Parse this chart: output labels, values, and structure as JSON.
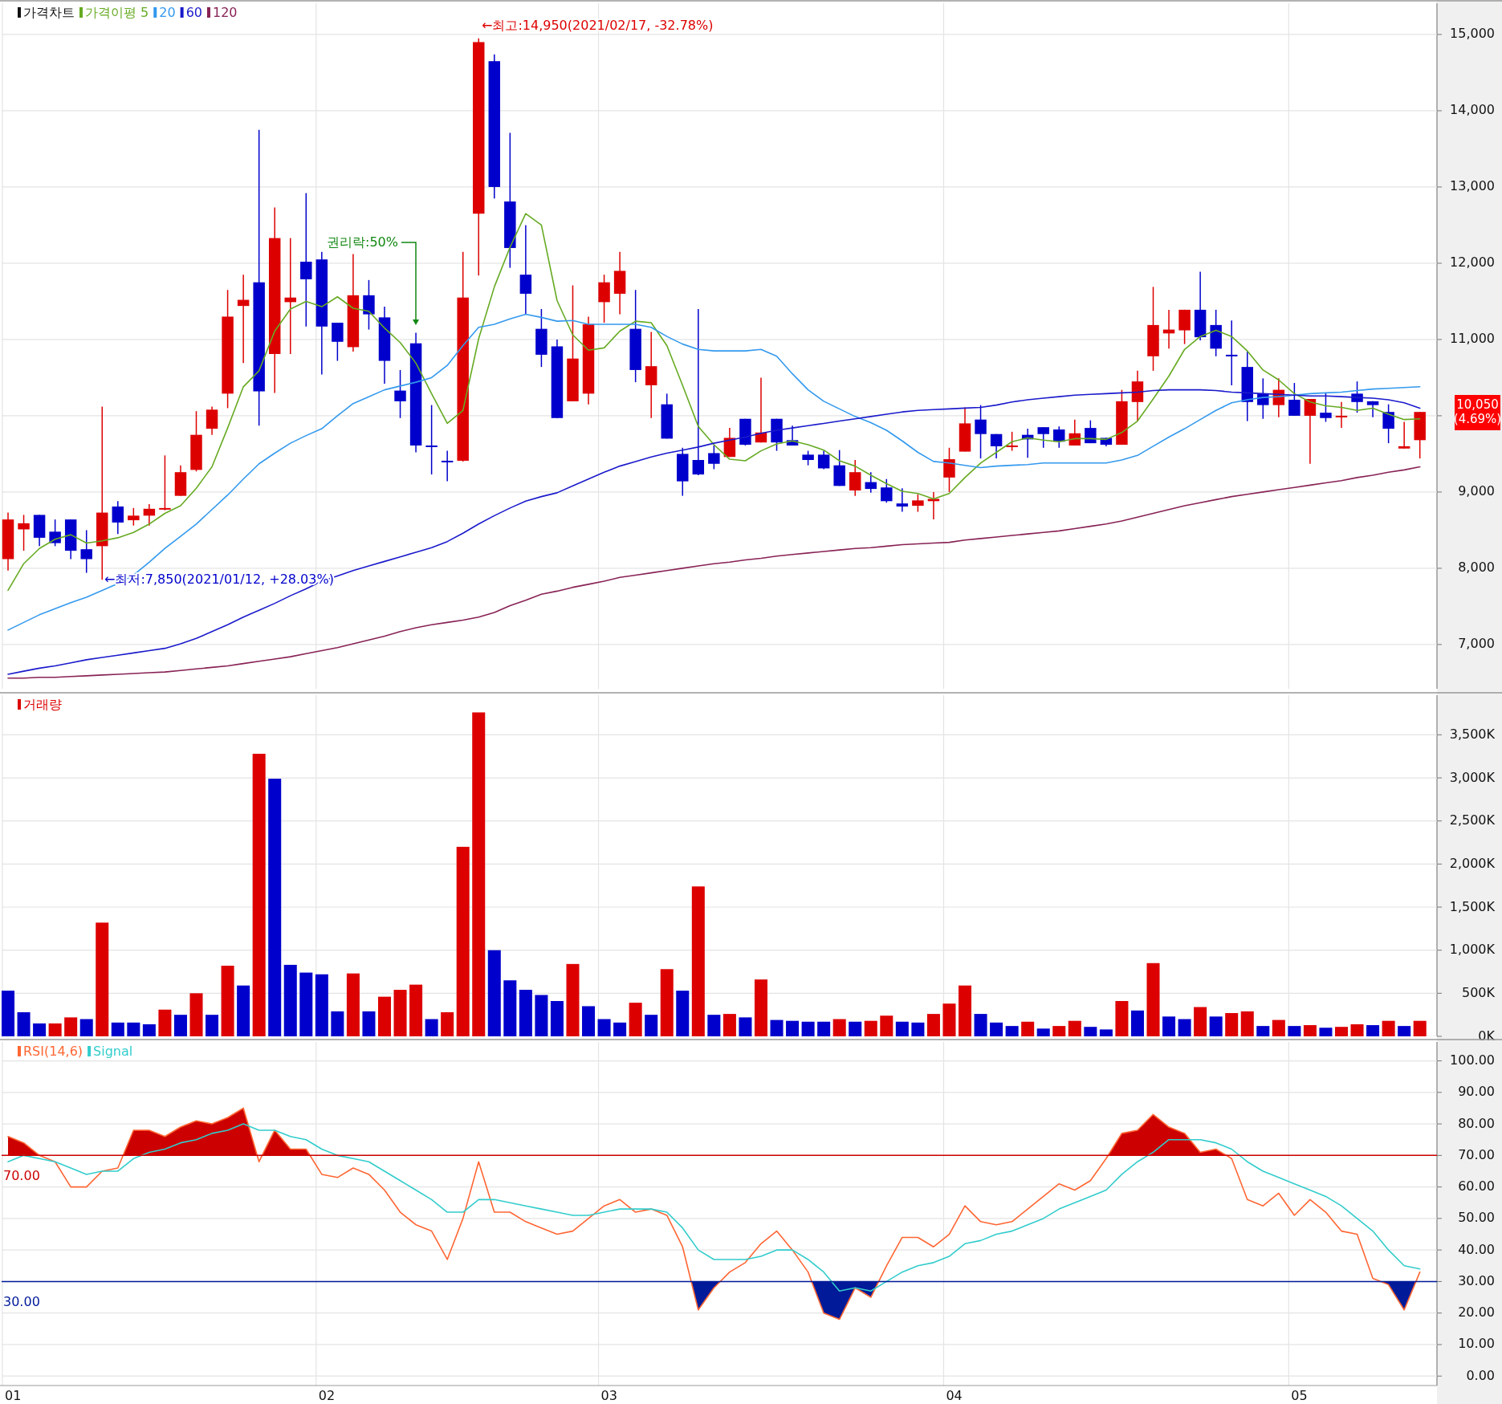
{
  "chart_data": [
    {
      "type": "candlestick",
      "title": "가격차트",
      "categories": [
        "01",
        null,
        null,
        null,
        null,
        null,
        null,
        null,
        null,
        null,
        null,
        null,
        null,
        null,
        null,
        null,
        null,
        null,
        null,
        null,
        "02",
        null,
        null,
        null,
        null,
        null,
        null,
        null,
        null,
        null,
        null,
        null,
        null,
        null,
        null,
        null,
        null,
        null,
        "03",
        null,
        null,
        null,
        null,
        null,
        null,
        null,
        null,
        null,
        null,
        null,
        null,
        null,
        null,
        null,
        null,
        null,
        null,
        null,
        null,
        null,
        "04",
        null,
        null,
        null,
        null,
        null,
        null,
        null,
        null,
        null,
        null,
        null,
        null,
        null,
        null,
        null,
        null,
        null,
        null,
        null,
        null,
        null,
        "05",
        null,
        null,
        null,
        null,
        null,
        null,
        null,
        null
      ],
      "ohlc": [
        [
          8120,
          8730,
          7970,
          8640
        ],
        [
          8510,
          8700,
          8230,
          8590
        ],
        [
          8700,
          8700,
          8290,
          8400
        ],
        [
          8480,
          8640,
          8290,
          8330
        ],
        [
          8640,
          8640,
          8120,
          8230
        ],
        [
          8250,
          8500,
          7940,
          8120
        ],
        [
          8290,
          10120,
          7850,
          8730
        ],
        [
          8810,
          8880,
          8450,
          8600
        ],
        [
          8630,
          8790,
          8560,
          8690
        ],
        [
          8690,
          8840,
          8560,
          8780
        ],
        [
          8770,
          9480,
          8760,
          8790
        ],
        [
          8950,
          9350,
          8950,
          9260
        ],
        [
          9290,
          10060,
          9270,
          9750
        ],
        [
          9830,
          10120,
          9750,
          10080
        ],
        [
          10290,
          11650,
          10100,
          11300
        ],
        [
          11440,
          11850,
          10690,
          11520
        ],
        [
          11750,
          13750,
          9870,
          10320
        ],
        [
          10810,
          12730,
          10300,
          12330
        ],
        [
          11490,
          12330,
          10810,
          11550
        ],
        [
          12020,
          12920,
          11170,
          11790
        ],
        [
          12050,
          12150,
          10540,
          11170
        ],
        [
          11220,
          11220,
          10720,
          10970
        ],
        [
          10900,
          12120,
          10840,
          11580
        ],
        [
          11580,
          11780,
          11130,
          11330
        ],
        [
          11290,
          11430,
          10420,
          10720
        ],
        [
          10330,
          10600,
          9970,
          10190
        ],
        [
          10950,
          11090,
          9520,
          9610
        ],
        [
          9610,
          10140,
          9230,
          9600
        ],
        [
          9410,
          9540,
          9140,
          9400
        ],
        [
          9410,
          12150,
          9400,
          11550
        ],
        [
          12650,
          14950,
          11840,
          14900
        ],
        [
          14650,
          14740,
          12850,
          13000
        ],
        [
          12810,
          13710,
          11940,
          12200
        ],
        [
          11850,
          12500,
          11330,
          11600
        ],
        [
          11140,
          11400,
          10640,
          10800
        ],
        [
          10910,
          11000,
          9970,
          9970
        ],
        [
          10190,
          11710,
          10190,
          10750
        ],
        [
          10290,
          11300,
          10150,
          11200
        ],
        [
          11490,
          11850,
          11220,
          11750
        ],
        [
          11600,
          12150,
          11330,
          11900
        ],
        [
          11140,
          11650,
          10440,
          10600
        ],
        [
          10400,
          11100,
          9970,
          10650
        ],
        [
          10150,
          10290,
          9700,
          9700
        ],
        [
          9500,
          9580,
          8950,
          9140
        ],
        [
          9420,
          11400,
          9220,
          9230
        ],
        [
          9510,
          9610,
          9300,
          9370
        ],
        [
          9460,
          9840,
          9460,
          9710
        ],
        [
          9960,
          9960,
          9610,
          9620
        ],
        [
          9650,
          10500,
          9650,
          9780
        ],
        [
          9960,
          9960,
          9540,
          9650
        ],
        [
          9680,
          9870,
          9610,
          9610
        ],
        [
          9490,
          9540,
          9350,
          9420
        ],
        [
          9490,
          9540,
          9300,
          9310
        ],
        [
          9350,
          9550,
          9080,
          9080
        ],
        [
          9020,
          9420,
          8950,
          9260
        ],
        [
          9130,
          9260,
          8990,
          9040
        ],
        [
          9060,
          9170,
          8860,
          8880
        ],
        [
          8850,
          9050,
          8740,
          8810
        ],
        [
          8820,
          8970,
          8740,
          8890
        ],
        [
          8880,
          9000,
          8640,
          8910
        ],
        [
          9190,
          9580,
          9000,
          9430
        ],
        [
          9530,
          10110,
          9530,
          9900
        ],
        [
          9950,
          10140,
          9440,
          9760
        ],
        [
          9760,
          9760,
          9440,
          9600
        ],
        [
          9590,
          9790,
          9540,
          9610
        ],
        [
          9750,
          9830,
          9450,
          9690
        ],
        [
          9850,
          9850,
          9580,
          9760
        ],
        [
          9820,
          9860,
          9580,
          9660
        ],
        [
          9610,
          9950,
          9610,
          9770
        ],
        [
          9840,
          9940,
          9640,
          9640
        ],
        [
          9710,
          9710,
          9600,
          9620
        ],
        [
          9620,
          10340,
          9620,
          10190
        ],
        [
          10180,
          10590,
          9930,
          10450
        ],
        [
          10780,
          11690,
          10590,
          11190
        ],
        [
          11080,
          11390,
          10880,
          11130
        ],
        [
          11120,
          11390,
          10940,
          11390
        ],
        [
          11390,
          11890,
          10990,
          11030
        ],
        [
          11190,
          11390,
          10780,
          10880
        ],
        [
          10800,
          11250,
          10400,
          10790
        ],
        [
          10640,
          10840,
          9930,
          10180
        ],
        [
          10290,
          10490,
          9960,
          10140
        ],
        [
          10140,
          10490,
          9980,
          10340
        ],
        [
          10210,
          10430,
          10000,
          10000
        ],
        [
          10000,
          10220,
          9370,
          10220
        ],
        [
          10040,
          10300,
          9920,
          9970
        ],
        [
          9990,
          10180,
          9840,
          10000
        ],
        [
          10290,
          10450,
          10040,
          10180
        ],
        [
          10190,
          10190,
          9980,
          10140
        ],
        [
          10050,
          10150,
          9640,
          9830
        ],
        [
          9570,
          9920,
          9570,
          9600
        ],
        [
          9680,
          10050,
          9440,
          10050
        ]
      ],
      "colors": [
        "#dd0000",
        "#dd0000",
        "#0000cc",
        "#0000cc",
        "#0000cc",
        "#0000cc",
        "#dd0000",
        "#0000cc",
        "#dd0000",
        "#dd0000",
        "#dd0000",
        "#dd0000",
        "#dd0000",
        "#dd0000",
        "#dd0000",
        "#dd0000",
        "#0000cc",
        "#dd0000",
        "#dd0000",
        "#0000cc",
        "#0000cc",
        "#0000cc",
        "#dd0000",
        "#0000cc",
        "#0000cc",
        "#0000cc",
        "#0000cc",
        "#0000cc",
        "#0000cc",
        "#dd0000",
        "#dd0000",
        "#0000cc",
        "#0000cc",
        "#0000cc",
        "#0000cc",
        "#0000cc",
        "#dd0000",
        "#dd0000",
        "#dd0000",
        "#dd0000",
        "#0000cc",
        "#dd0000",
        "#0000cc",
        "#0000cc",
        "#0000cc",
        "#0000cc",
        "#dd0000",
        "#0000cc",
        "#dd0000",
        "#0000cc",
        "#0000cc",
        "#0000cc",
        "#0000cc",
        "#0000cc",
        "#dd0000",
        "#0000cc",
        "#0000cc",
        "#0000cc",
        "#dd0000",
        "#dd0000",
        "#dd0000",
        "#dd0000",
        "#0000cc",
        "#0000cc",
        "#dd0000",
        "#0000cc",
        "#0000cc",
        "#0000cc",
        "#dd0000",
        "#0000cc",
        "#0000cc",
        "#dd0000",
        "#dd0000",
        "#dd0000",
        "#dd0000",
        "#dd0000",
        "#0000cc",
        "#0000cc",
        "#0000cc",
        "#0000cc",
        "#0000cc",
        "#dd0000",
        "#0000cc",
        "#dd0000",
        "#0000cc",
        "#dd0000",
        "#0000cc",
        "#0000cc",
        "#0000cc",
        "#dd0000",
        "#dd0000"
      ],
      "series": [
        {
          "name": "가격이평 5",
          "type": "line",
          "color": "#66aa22",
          "values": [
            7710,
            8060,
            8260,
            8380,
            8440,
            8330,
            8360,
            8400,
            8470,
            8580,
            8720,
            8820,
            9050,
            9330,
            9840,
            10380,
            10590,
            11110,
            11400,
            11500,
            11430,
            11560,
            11410,
            11370,
            11150,
            10960,
            10690,
            10290,
            9900,
            10070,
            11010,
            11690,
            12210,
            12650,
            12500,
            11510,
            11060,
            10860,
            10890,
            11110,
            11240,
            11220,
            10920,
            10400,
            9860,
            9620,
            9430,
            9410,
            9540,
            9630,
            9670,
            9620,
            9550,
            9410,
            9340,
            9220,
            9110,
            9010,
            8980,
            8910,
            8980,
            9190,
            9380,
            9520,
            9660,
            9710,
            9680,
            9660,
            9700,
            9700,
            9690,
            9780,
            9930,
            10220,
            10520,
            10870,
            11040,
            11120,
            11040,
            10850,
            10600,
            10470,
            10290,
            10180,
            10130,
            10110,
            10070,
            10100,
            10020,
            9950,
            9960
          ]
        },
        {
          "name": "20",
          "type": "line",
          "color": "#3399ee",
          "values": [
            7190,
            7290,
            7390,
            7470,
            7550,
            7620,
            7710,
            7800,
            7910,
            8080,
            8260,
            8420,
            8580,
            8770,
            8960,
            9170,
            9370,
            9510,
            9640,
            9740,
            9830,
            10000,
            10160,
            10250,
            10340,
            10390,
            10440,
            10500,
            10660,
            10920,
            11160,
            11200,
            11270,
            11330,
            11290,
            11240,
            11250,
            11200,
            11200,
            11200,
            11200,
            11160,
            11040,
            10940,
            10870,
            10850,
            10850,
            10850,
            10870,
            10780,
            10550,
            10340,
            10190,
            10090,
            9990,
            9910,
            9810,
            9670,
            9520,
            9400,
            9380,
            9350,
            9320,
            9340,
            9350,
            9360,
            9380,
            9380,
            9380,
            9380,
            9380,
            9420,
            9480,
            9600,
            9720,
            9830,
            9950,
            10070,
            10170,
            10210,
            10240,
            10250,
            10270,
            10290,
            10300,
            10310,
            10330,
            10350,
            10360,
            10370,
            10380
          ]
        },
        {
          "name": "60",
          "type": "line",
          "color": "#1a1acc",
          "values": [
            6610,
            6650,
            6690,
            6720,
            6760,
            6800,
            6830,
            6860,
            6890,
            6920,
            6950,
            7010,
            7080,
            7170,
            7260,
            7360,
            7450,
            7540,
            7640,
            7730,
            7830,
            7900,
            7970,
            8030,
            8090,
            8150,
            8210,
            8270,
            8350,
            8460,
            8580,
            8690,
            8790,
            8880,
            8940,
            8990,
            9080,
            9170,
            9260,
            9340,
            9400,
            9460,
            9510,
            9550,
            9590,
            9640,
            9680,
            9720,
            9770,
            9810,
            9840,
            9870,
            9900,
            9930,
            9960,
            9990,
            10020,
            10050,
            10070,
            10080,
            10090,
            10100,
            10110,
            10140,
            10180,
            10210,
            10230,
            10250,
            10270,
            10280,
            10290,
            10300,
            10310,
            10330,
            10340,
            10340,
            10340,
            10330,
            10310,
            10300,
            10290,
            10280,
            10270,
            10260,
            10260,
            10250,
            10240,
            10230,
            10210,
            10170,
            10100
          ]
        },
        {
          "name": "120",
          "type": "line",
          "color": "#882255",
          "values": [
            6560,
            6560,
            6570,
            6570,
            6580,
            6590,
            6600,
            6610,
            6620,
            6630,
            6640,
            6660,
            6680,
            6700,
            6720,
            6750,
            6780,
            6810,
            6840,
            6880,
            6920,
            6960,
            7010,
            7060,
            7110,
            7170,
            7220,
            7260,
            7290,
            7320,
            7360,
            7420,
            7510,
            7580,
            7660,
            7700,
            7750,
            7790,
            7830,
            7880,
            7910,
            7940,
            7970,
            8000,
            8030,
            8060,
            8080,
            8110,
            8130,
            8160,
            8180,
            8200,
            8220,
            8240,
            8260,
            8270,
            8290,
            8310,
            8320,
            8330,
            8340,
            8370,
            8390,
            8410,
            8430,
            8450,
            8470,
            8490,
            8520,
            8550,
            8580,
            8620,
            8670,
            8720,
            8770,
            8820,
            8860,
            8900,
            8940,
            8970,
            9000,
            9030,
            9060,
            9090,
            9120,
            9150,
            9190,
            9220,
            9260,
            9290,
            9330
          ]
        }
      ],
      "ylim": [
        6420,
        15410
      ],
      "yticks": [
        {
          "value": 7000,
          "label": "7,000"
        },
        {
          "value": 8000,
          "label": "8,000"
        },
        {
          "value": 9000,
          "label": "9,000"
        },
        {
          "value": 10000,
          "label": null
        },
        {
          "value": 11000,
          "label": "11,000"
        },
        {
          "value": 12000,
          "label": "12,000"
        },
        {
          "value": 13000,
          "label": "13,000"
        },
        {
          "value": 14000,
          "label": "14,000"
        },
        {
          "value": 15000,
          "label": "15,000"
        }
      ],
      "annotations": [
        "←최고:14,950(2021/02/17, -32.78%)",
        "←최저:7,850(2021/01/12, +28.03%)",
        "권리락:50%",
        "10,050\n(4.69%)"
      ],
      "grid": true,
      "legend": "top left",
      "tick_labels": "y"
    },
    {
      "type": "bar",
      "categories": [
        "01",
        null,
        null,
        null,
        null,
        null,
        null,
        null,
        null,
        null,
        null,
        null,
        null,
        null,
        null,
        null,
        null,
        null,
        null,
        null,
        "02",
        null,
        null,
        null,
        null,
        null,
        null,
        null,
        null,
        null,
        null,
        null,
        null,
        null,
        null,
        null,
        null,
        null,
        "03",
        null,
        null,
        null,
        null,
        null,
        null,
        null,
        null,
        null,
        null,
        null,
        null,
        null,
        null,
        null,
        null,
        null,
        null,
        null,
        null,
        null,
        "04",
        null,
        null,
        null,
        null,
        null,
        null,
        null,
        null,
        null,
        null,
        null,
        null,
        null,
        null,
        null,
        null,
        null,
        null,
        null,
        null,
        null,
        "05",
        null,
        null,
        null,
        null,
        null,
        null,
        null,
        null
      ],
      "series": [
        {
          "name": "거래량",
          "color": "#dd0000",
          "colors": [
            "#0000cc",
            "#0000cc",
            "#0000cc",
            "#dd0000",
            "#dd0000",
            "#0000cc",
            "#dd0000",
            "#0000cc",
            "#0000cc",
            "#0000cc",
            "#dd0000",
            "#0000cc",
            "#dd0000",
            "#0000cc",
            "#dd0000",
            "#0000cc",
            "#dd0000",
            "#0000cc",
            "#0000cc",
            "#0000cc",
            "#0000cc",
            "#0000cc",
            "#dd0000",
            "#0000cc",
            "#dd0000",
            "#dd0000",
            "#dd0000",
            "#0000cc",
            "#dd0000",
            "#dd0000",
            "#dd0000",
            "#0000cc",
            "#0000cc",
            "#0000cc",
            "#0000cc",
            "#0000cc",
            "#dd0000",
            "#0000cc",
            "#0000cc",
            "#0000cc",
            "#dd0000",
            "#0000cc",
            "#dd0000",
            "#0000cc",
            "#dd0000",
            "#0000cc",
            "#dd0000",
            "#0000cc",
            "#dd0000",
            "#0000cc",
            "#0000cc",
            "#0000cc",
            "#0000cc",
            "#dd0000",
            "#0000cc",
            "#dd0000",
            "#dd0000",
            "#0000cc",
            "#0000cc",
            "#dd0000",
            "#dd0000",
            "#dd0000",
            "#0000cc",
            "#0000cc",
            "#0000cc",
            "#dd0000",
            "#0000cc",
            "#dd0000",
            "#dd0000",
            "#0000cc",
            "#0000cc",
            "#dd0000",
            "#0000cc",
            "#dd0000",
            "#0000cc",
            "#0000cc",
            "#dd0000",
            "#0000cc",
            "#dd0000",
            "#dd0000",
            "#0000cc",
            "#dd0000",
            "#0000cc",
            "#dd0000",
            "#0000cc",
            "#dd0000",
            "#dd0000",
            "#0000cc",
            "#dd0000",
            "#0000cc",
            "#dd0000"
          ],
          "values": [
            530,
            280,
            150,
            150,
            220,
            200,
            1320,
            160,
            160,
            140,
            310,
            250,
            500,
            250,
            820,
            590,
            3280,
            2990,
            830,
            740,
            720,
            290,
            730,
            290,
            460,
            540,
            600,
            200,
            280,
            2200,
            3760,
            1000,
            650,
            540,
            480,
            410,
            840,
            350,
            200,
            160,
            390,
            250,
            780,
            530,
            1740,
            250,
            260,
            220,
            660,
            190,
            180,
            170,
            170,
            200,
            170,
            180,
            240,
            170,
            160,
            260,
            380,
            590,
            260,
            160,
            120,
            170,
            90,
            120,
            180,
            110,
            80,
            410,
            300,
            850,
            230,
            200,
            340,
            230,
            270,
            290,
            120,
            190,
            120,
            130,
            100,
            110,
            140,
            130,
            180,
            120,
            180
          ]
        }
      ],
      "ylim": [
        0,
        3960
      ],
      "yticks": [
        {
          "value": 0,
          "label": "0K"
        },
        {
          "value": 500,
          "label": "500K"
        },
        {
          "value": 1000,
          "label": "1,000K"
        },
        {
          "value": 1500,
          "label": "1,500K"
        },
        {
          "value": 2000,
          "label": "2,000K"
        },
        {
          "value": 2500,
          "label": "2,500K"
        },
        {
          "value": 3000,
          "label": "3,000K"
        },
        {
          "value": 3500,
          "label": "3,500K"
        }
      ],
      "grid": true,
      "legend": "top left",
      "tick_labels": "y"
    },
    {
      "type": "line",
      "categories": [
        "01",
        null,
        null,
        null,
        null,
        null,
        null,
        null,
        null,
        null,
        null,
        null,
        null,
        null,
        null,
        null,
        null,
        null,
        null,
        null,
        "02",
        null,
        null,
        null,
        null,
        null,
        null,
        null,
        null,
        null,
        null,
        null,
        null,
        null,
        null,
        null,
        null,
        null,
        "03",
        null,
        null,
        null,
        null,
        null,
        null,
        null,
        null,
        null,
        null,
        null,
        null,
        null,
        null,
        null,
        null,
        null,
        null,
        null,
        null,
        null,
        "04",
        null,
        null,
        null,
        null,
        null,
        null,
        null,
        null,
        null,
        null,
        null,
        null,
        null,
        null,
        null,
        null,
        null,
        null,
        null,
        null,
        null,
        "05",
        null,
        null,
        null,
        null,
        null,
        null,
        null,
        null
      ],
      "series": [
        {
          "name": "RSI(14,6)",
          "color": "#ff6633",
          "values": [
            76,
            74,
            70,
            68,
            60,
            60,
            65,
            66,
            78,
            78,
            76,
            79,
            81,
            80,
            82,
            85,
            68,
            78,
            72,
            72,
            64,
            63,
            66,
            64,
            59,
            52,
            48,
            46,
            37,
            50,
            68,
            52,
            52,
            49,
            47,
            45,
            46,
            50,
            54,
            56,
            52,
            53,
            51,
            41,
            21,
            28,
            33,
            36,
            42,
            46,
            40,
            33,
            20,
            18,
            28,
            25,
            35,
            44,
            44,
            41,
            45,
            54,
            49,
            48,
            49,
            53,
            57,
            61,
            59,
            62,
            69,
            77,
            78,
            83,
            79,
            77,
            71,
            72,
            69,
            56,
            54,
            58,
            51,
            56,
            52,
            46,
            45,
            31,
            29,
            21,
            33
          ]
        },
        {
          "name": "Signal",
          "color": "#33cccc",
          "values": [
            68,
            70,
            69,
            68,
            66,
            64,
            65,
            65,
            69,
            71,
            72,
            74,
            75,
            77,
            78,
            80,
            78,
            78,
            76,
            75,
            72,
            70,
            69,
            68,
            65,
            62,
            59,
            56,
            52,
            52,
            56,
            56,
            55,
            54,
            53,
            52,
            51,
            51,
            52,
            53,
            53,
            53,
            52,
            47,
            40,
            37,
            37,
            37,
            38,
            40,
            40,
            37,
            33,
            27,
            28,
            27,
            30,
            33,
            35,
            36,
            38,
            42,
            43,
            45,
            46,
            48,
            50,
            53,
            55,
            57,
            59,
            64,
            68,
            71,
            75,
            75,
            75,
            74,
            72,
            68,
            65,
            63,
            61,
            59,
            57,
            54,
            50,
            46,
            40,
            35,
            34
          ]
        }
      ],
      "ylim": [
        -3,
        106
      ],
      "yticks": [
        {
          "value": 0,
          "label": "0.00"
        },
        {
          "value": 10,
          "label": "10.00"
        },
        {
          "value": 20,
          "label": "20.00"
        },
        {
          "value": 30,
          "label": "30.00"
        },
        {
          "value": 40,
          "label": "40.00"
        },
        {
          "value": 50,
          "label": "50.00"
        },
        {
          "value": 60,
          "label": "60.00"
        },
        {
          "value": 70,
          "label": "70.00"
        },
        {
          "value": 80,
          "label": "80.00"
        },
        {
          "value": 90,
          "label": "90.00"
        },
        {
          "value": 100,
          "label": "100.00"
        }
      ],
      "ref_lines": [
        {
          "axis": "y",
          "value": 70,
          "label": "70.00",
          "color": "#cc0000"
        },
        {
          "axis": "y",
          "value": 30,
          "label": "30.00",
          "color": "#001a99"
        }
      ],
      "grid": true,
      "legend": "top left"
    }
  ]
}
